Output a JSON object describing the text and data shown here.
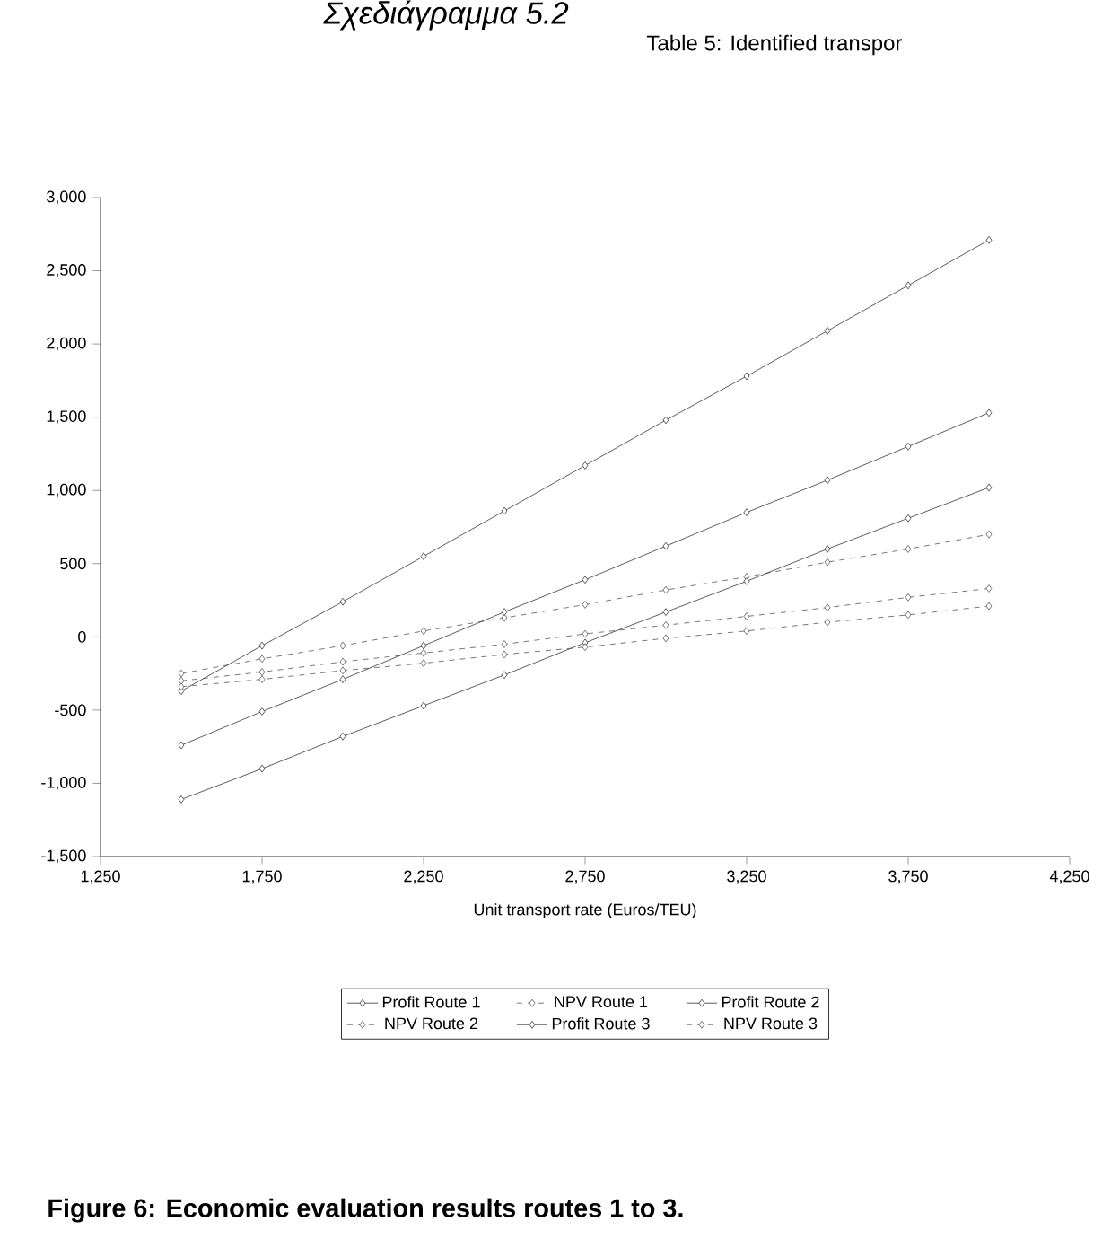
{
  "chart_data": {
    "type": "line",
    "title": "Figure 6: Economic evaluation results routes 1 to 3.",
    "xlabel": "Unit transport rate (Euros/TEU)",
    "annotations": [
      "Σχεδιάγραμμα 5.2",
      "Table 5: Identified transpor"
    ],
    "x": [
      1500,
      1750,
      2000,
      2250,
      2500,
      2750,
      3000,
      3250,
      3500,
      3750,
      4000
    ],
    "series": [
      {
        "name": "Profit Route 1",
        "color": "#333333",
        "line_style": "solid",
        "values": [
          -370,
          -60,
          240,
          550,
          860,
          1170,
          1480,
          1780,
          2090,
          2400,
          2710
        ]
      },
      {
        "name": "NPV Route 1",
        "color": "#555555",
        "line_style": "dashed",
        "values": [
          -250,
          -150,
          -60,
          40,
          130,
          220,
          320,
          410,
          510,
          600,
          700
        ]
      },
      {
        "name": "Profit Route 2",
        "color": "#333333",
        "line_style": "solid",
        "values": [
          -740,
          -510,
          -290,
          -60,
          170,
          390,
          620,
          850,
          1070,
          1300,
          1530
        ]
      },
      {
        "name": "NPV Route 2",
        "color": "#555555",
        "line_style": "dashed",
        "values": [
          -300,
          -240,
          -170,
          -110,
          -50,
          20,
          80,
          140,
          200,
          270,
          330
        ]
      },
      {
        "name": "Profit Route 3",
        "color": "#333333",
        "line_style": "solid",
        "values": [
          -1110,
          -900,
          -680,
          -470,
          -260,
          -40,
          170,
          380,
          600,
          810,
          1020
        ]
      },
      {
        "name": "NPV Route 3",
        "color": "#555555",
        "line_style": "dashed",
        "values": [
          -340,
          -290,
          -230,
          -180,
          -120,
          -70,
          -10,
          40,
          100,
          150,
          210
        ]
      }
    ],
    "xlim": [
      1250,
      4250
    ],
    "xticks": [
      {
        "value": 1250,
        "label": "1,250"
      },
      {
        "value": 1750,
        "label": "1,750"
      },
      {
        "value": 2250,
        "label": "2,250"
      },
      {
        "value": 2750,
        "label": "2,750"
      },
      {
        "value": 3250,
        "label": "3,250"
      },
      {
        "value": 3750,
        "label": "3,750"
      },
      {
        "value": 4250,
        "label": "4,250"
      }
    ],
    "ylim": [
      -1500,
      3000
    ],
    "yticks": [
      {
        "value": -1500,
        "label": "-1,500"
      },
      {
        "value": -1000,
        "label": "-1,000"
      },
      {
        "value": -500,
        "label": "-500"
      },
      0,
      500,
      {
        "value": 1000,
        "label": "1,000"
      },
      {
        "value": 1500,
        "label": "1,500"
      },
      {
        "value": 2000,
        "label": "2,000"
      },
      {
        "value": 2500,
        "label": "2,500"
      },
      {
        "value": 3000,
        "label": "3,000"
      }
    ],
    "grid": false,
    "legend": "bottom",
    "marker": "diamond"
  }
}
